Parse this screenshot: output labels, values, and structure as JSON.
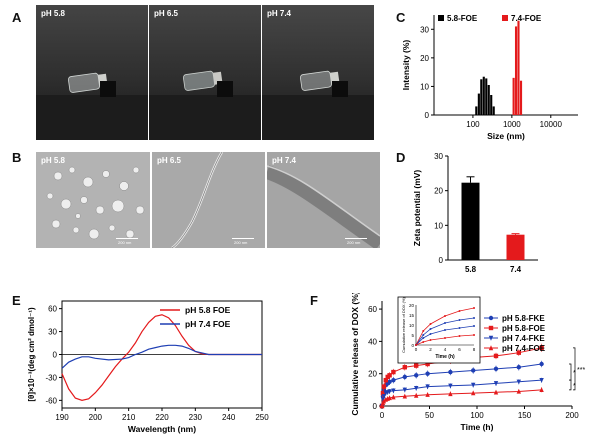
{
  "panels": {
    "A": {
      "label": "A",
      "photos": [
        {
          "caption": "pH 5.8"
        },
        {
          "caption": "pH 6.5"
        },
        {
          "caption": "pH 7.4"
        }
      ]
    },
    "B": {
      "label": "B",
      "images": [
        {
          "caption": "pH 5.8",
          "scalebar": "200 nm"
        },
        {
          "caption": "pH 6.5",
          "scalebar": "200 nm"
        },
        {
          "caption": "pH 7.4",
          "scalebar": "200 nm"
        }
      ]
    },
    "C": {
      "label": "C"
    },
    "D": {
      "label": "D"
    },
    "E": {
      "label": "E"
    },
    "F": {
      "label": "F"
    }
  },
  "chart_data": [
    {
      "id": "C",
      "type": "bar",
      "title": "",
      "xlabel": "Size (nm)",
      "ylabel": "Intensity (%)",
      "xscale": "log",
      "xlim": [
        10,
        50000
      ],
      "ylim": [
        0,
        35
      ],
      "xticks": [
        100,
        1000,
        10000
      ],
      "xtick_labels": [
        "100",
        "1000",
        "10000"
      ],
      "yticks": [
        0,
        10,
        20,
        30
      ],
      "ytick_labels": [
        "0",
        "10",
        "20",
        "30"
      ],
      "legend_position": "top",
      "colors": {
        "5.8-FOE": "#000000",
        "7.4-FOE": "#e41a1c"
      },
      "series": [
        {
          "name": "5.8-FOE",
          "x": [
            122,
            142,
            164,
            190,
            220,
            255,
            295,
            342
          ],
          "values": [
            3,
            7.5,
            12.5,
            13.4,
            12.8,
            10.5,
            7,
            3
          ]
        },
        {
          "name": "7.4-FOE",
          "x": [
            1110,
            1280,
            1480,
            1720
          ],
          "values": [
            13,
            31,
            33,
            12
          ]
        }
      ]
    },
    {
      "id": "D",
      "type": "bar",
      "title": "",
      "xlabel": "",
      "ylabel": "Zeta potential (mV)",
      "ylim": [
        0,
        30
      ],
      "yticks": [
        0,
        10,
        20,
        30
      ],
      "ytick_labels": [
        "0",
        "10",
        "20",
        "30"
      ],
      "categories": [
        "5.8",
        "7.4"
      ],
      "values": [
        22.3,
        7.3
      ],
      "errors": [
        1.7,
        0.3
      ],
      "colors": [
        "#000000",
        "#e41a1c"
      ]
    },
    {
      "id": "E",
      "type": "line",
      "title": "",
      "xlabel": "Wavelength (nm)",
      "ylabel": "[θ]×10⁻³(deg cm² dmol⁻¹)",
      "xlim": [
        190,
        250
      ],
      "ylim": [
        -70,
        70
      ],
      "xticks": [
        190,
        200,
        210,
        220,
        230,
        240,
        250
      ],
      "xtick_labels": [
        "190",
        "200",
        "210",
        "220",
        "230",
        "240",
        "250"
      ],
      "yticks": [
        -60,
        -30,
        0,
        30,
        60
      ],
      "ytick_labels": [
        "-60",
        "-30",
        "0",
        "30",
        "60"
      ],
      "legend_position": "top-right",
      "series": [
        {
          "name": "pH 5.8 FOE",
          "color": "#e41a1c",
          "x": [
            190,
            192,
            194,
            196,
            198,
            200,
            202,
            204,
            206,
            208,
            210,
            212,
            214,
            216,
            218,
            220,
            222,
            224,
            226,
            228,
            230,
            232,
            234,
            236,
            240,
            245,
            250
          ],
          "values": [
            -25,
            -45,
            -57,
            -60,
            -58,
            -50,
            -40,
            -28,
            -16,
            -6,
            3,
            15,
            30,
            42,
            50,
            52,
            48,
            38,
            24,
            12,
            4,
            1,
            0,
            0,
            0,
            0,
            0
          ]
        },
        {
          "name": "pH 7.4 FOE",
          "color": "#1f3fb4",
          "x": [
            190,
            192,
            194,
            196,
            198,
            200,
            204,
            208,
            210,
            212,
            214,
            216,
            218,
            220,
            222,
            224,
            226,
            228,
            230,
            232,
            234,
            236,
            240,
            245,
            250
          ],
          "values": [
            -18,
            -10,
            -6,
            -3,
            -3,
            -5,
            -7,
            -6,
            -4,
            0,
            3,
            7,
            9,
            11,
            12,
            12,
            11,
            8,
            4,
            2,
            0,
            0,
            0,
            0,
            0
          ]
        }
      ]
    },
    {
      "id": "F",
      "type": "line",
      "title": "",
      "xlabel": "Time (h)",
      "ylabel": "Cumulative release of DOX (%)",
      "xlim": [
        0,
        200
      ],
      "ylim": [
        0,
        65
      ],
      "xticks": [
        0,
        50,
        100,
        150,
        200
      ],
      "xtick_labels": [
        "0",
        "50",
        "100",
        "150",
        "200"
      ],
      "yticks": [
        0,
        20,
        40,
        60
      ],
      "ytick_labels": [
        "0",
        "20",
        "40",
        "60"
      ],
      "legend_position": "right",
      "significance": [
        "***",
        "*",
        "*"
      ],
      "series": [
        {
          "name": "pH 5.8-FKE",
          "color": "#1f3fb4",
          "marker": "circle",
          "x": [
            0,
            1,
            2,
            4,
            6,
            8,
            12,
            24,
            36,
            48,
            72,
            96,
            120,
            144,
            168
          ],
          "values": [
            0,
            6,
            10,
            13,
            14,
            15,
            16,
            18,
            19,
            20,
            21,
            22,
            23,
            24,
            26
          ],
          "errors": [
            0,
            1,
            1.5,
            2,
            2,
            2,
            2,
            2,
            2,
            2,
            2,
            2,
            2,
            2,
            2
          ]
        },
        {
          "name": "pH 5.8-FOE",
          "color": "#e41a1c",
          "marker": "square",
          "x": [
            0,
            1,
            2,
            4,
            6,
            8,
            12,
            24,
            36,
            48,
            72,
            96,
            120,
            144,
            168
          ],
          "values": [
            0,
            8,
            12,
            16,
            18,
            19,
            21,
            24,
            25,
            26,
            28,
            30,
            31,
            33,
            36
          ],
          "errors": [
            0,
            1,
            2,
            2,
            2,
            2,
            2,
            2,
            2,
            2,
            2,
            2,
            2,
            2,
            2.5
          ]
        },
        {
          "name": "pH 7.4-FKE",
          "color": "#1f3fb4",
          "marker": "triangle-down",
          "x": [
            0,
            1,
            2,
            4,
            6,
            8,
            12,
            24,
            36,
            48,
            72,
            96,
            120,
            144,
            168
          ],
          "values": [
            0,
            4,
            6,
            8,
            8.5,
            9,
            9.5,
            10,
            11,
            12,
            12.5,
            13,
            14,
            15,
            16
          ],
          "errors": [
            0,
            1,
            1,
            1.5,
            1.5,
            1.5,
            1.5,
            1.5,
            1.5,
            1.5,
            1.5,
            1.5,
            1.5,
            1.5,
            1.5
          ]
        },
        {
          "name": "pH 7.4-FOE",
          "color": "#e41a1c",
          "marker": "triangle-up",
          "x": [
            0,
            1,
            2,
            4,
            6,
            8,
            12,
            24,
            36,
            48,
            72,
            96,
            120,
            144,
            168
          ],
          "values": [
            0,
            2,
            3,
            4,
            4.5,
            5,
            5.5,
            6,
            6.5,
            7,
            7.5,
            8,
            8.5,
            9,
            10
          ],
          "errors": [
            0,
            0.5,
            0.5,
            1,
            1,
            1,
            1,
            1,
            1,
            1,
            1,
            1,
            1,
            1,
            1.5
          ]
        }
      ]
    },
    {
      "id": "F-inset",
      "type": "line",
      "title": "",
      "xlabel": "Time (h)",
      "ylabel": "Cumulative release of DOX (%)",
      "xlim": [
        0,
        8
      ],
      "ylim": [
        0,
        20
      ],
      "xticks": [
        0,
        2,
        4,
        6,
        8
      ],
      "xtick_labels": [
        "0",
        "2",
        "4",
        "6",
        "8"
      ],
      "yticks": [
        0,
        5,
        10,
        15,
        20
      ],
      "ytick_labels": [
        "0",
        "5",
        "10",
        "15",
        "20"
      ],
      "series": [
        {
          "name": "pH 5.8-FKE",
          "color": "#1f3fb4",
          "x": [
            0,
            1,
            2,
            4,
            6,
            8
          ],
          "values": [
            0,
            5,
            8,
            11,
            12.5,
            13.5
          ]
        },
        {
          "name": "pH 5.8-FOE",
          "color": "#e41a1c",
          "x": [
            0,
            1,
            2,
            4,
            6,
            8
          ],
          "values": [
            0,
            7,
            10.5,
            14.5,
            17,
            18.5
          ]
        },
        {
          "name": "pH 7.4-FKE",
          "color": "#1f3fb4",
          "x": [
            0,
            1,
            2,
            4,
            6,
            8
          ],
          "values": [
            0,
            3.5,
            5.5,
            7.5,
            8.5,
            9.5
          ]
        },
        {
          "name": "pH 7.4-FOE",
          "color": "#e41a1c",
          "x": [
            0,
            1,
            2,
            4,
            6,
            8
          ],
          "values": [
            0,
            1.5,
            2.5,
            3.5,
            4.5,
            5
          ]
        }
      ]
    }
  ]
}
